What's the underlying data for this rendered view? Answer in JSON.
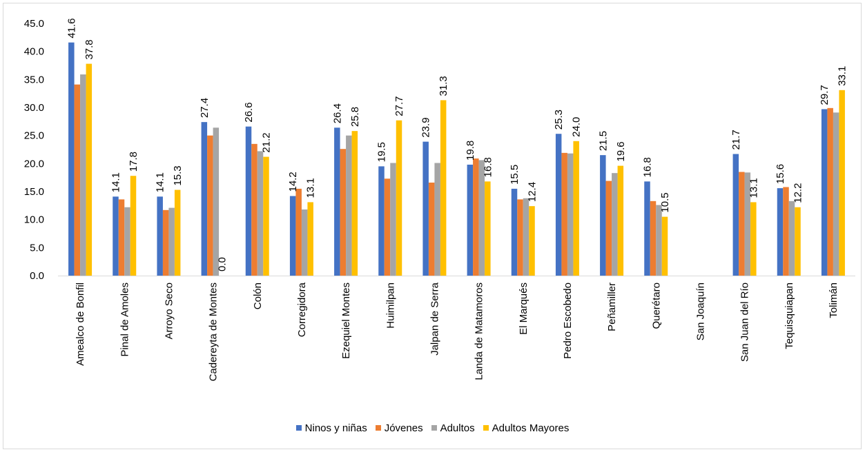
{
  "chart_data": {
    "type": "bar",
    "title": "",
    "xlabel": "",
    "ylabel": "",
    "ylim": [
      0,
      45
    ],
    "yticks": [
      "0.0",
      "5.0",
      "10.0",
      "15.0",
      "20.0",
      "25.0",
      "30.0",
      "35.0",
      "40.0",
      "45.0"
    ],
    "grid": false,
    "legend_position": "bottom",
    "categories": [
      "Amealco de Bonfil",
      "Pinal de Amoles",
      "Arroyo Seco",
      "Cadereyta de Montes",
      "Colón",
      "Corregidora",
      "Ezequiel Montes",
      "Huimilpan",
      "Jalpan de Serra",
      "Landa de Matamoros",
      "El Marqués",
      "Pedro Escobedo",
      "Peñamiller",
      "Querétaro",
      "San Joaquín",
      "San Juan del Río",
      "Tequisquiapan",
      "Tolimán"
    ],
    "series": [
      {
        "name": "Ninos y niñas",
        "color": "#4472c4",
        "values": [
          41.6,
          14.1,
          14.1,
          27.4,
          26.6,
          14.2,
          26.4,
          19.5,
          23.9,
          19.8,
          15.5,
          25.3,
          21.5,
          16.8,
          null,
          21.7,
          15.6,
          29.7
        ],
        "labels": [
          "41.6",
          "14.1",
          "14.1",
          "27.4",
          "26.6",
          "14.2",
          "26.4",
          "19.5",
          "23.9",
          "19.8",
          "15.5",
          "25.3",
          "21.5",
          "16.8",
          null,
          "21.7",
          "15.6",
          "29.7"
        ]
      },
      {
        "name": "Jóvenes",
        "color": "#ed7d31",
        "values": [
          34.1,
          13.6,
          11.7,
          25.0,
          23.5,
          15.5,
          22.6,
          17.3,
          16.6,
          20.9,
          13.6,
          21.9,
          16.9,
          13.3,
          null,
          18.5,
          15.8,
          29.9
        ],
        "labels": [
          null,
          null,
          null,
          null,
          null,
          null,
          null,
          null,
          null,
          null,
          null,
          null,
          null,
          null,
          null,
          null,
          null,
          null
        ]
      },
      {
        "name": "Adultos",
        "color": "#a5a5a5",
        "values": [
          35.9,
          12.2,
          12.1,
          26.4,
          22.2,
          11.8,
          25.0,
          20.1,
          20.1,
          20.6,
          13.8,
          21.8,
          18.3,
          12.6,
          null,
          18.4,
          13.3,
          29.1
        ],
        "labels": [
          null,
          null,
          null,
          null,
          null,
          null,
          null,
          null,
          null,
          null,
          null,
          null,
          null,
          null,
          null,
          null,
          null,
          null
        ]
      },
      {
        "name": "Adultos Mayores",
        "color": "#ffc000",
        "values": [
          37.8,
          17.8,
          15.3,
          0.0,
          21.2,
          13.1,
          25.8,
          27.7,
          31.3,
          16.8,
          12.4,
          24.0,
          19.6,
          10.5,
          null,
          13.1,
          12.2,
          33.1
        ],
        "labels": [
          "37.8",
          "17.8",
          "15.3",
          "0.0",
          "21.2",
          "13.1",
          "25.8",
          "27.7",
          "31.3",
          "16.8",
          "12.4",
          "24.0",
          "19.6",
          "10.5",
          null,
          "13.1",
          "12.2",
          "33.1"
        ]
      }
    ]
  }
}
